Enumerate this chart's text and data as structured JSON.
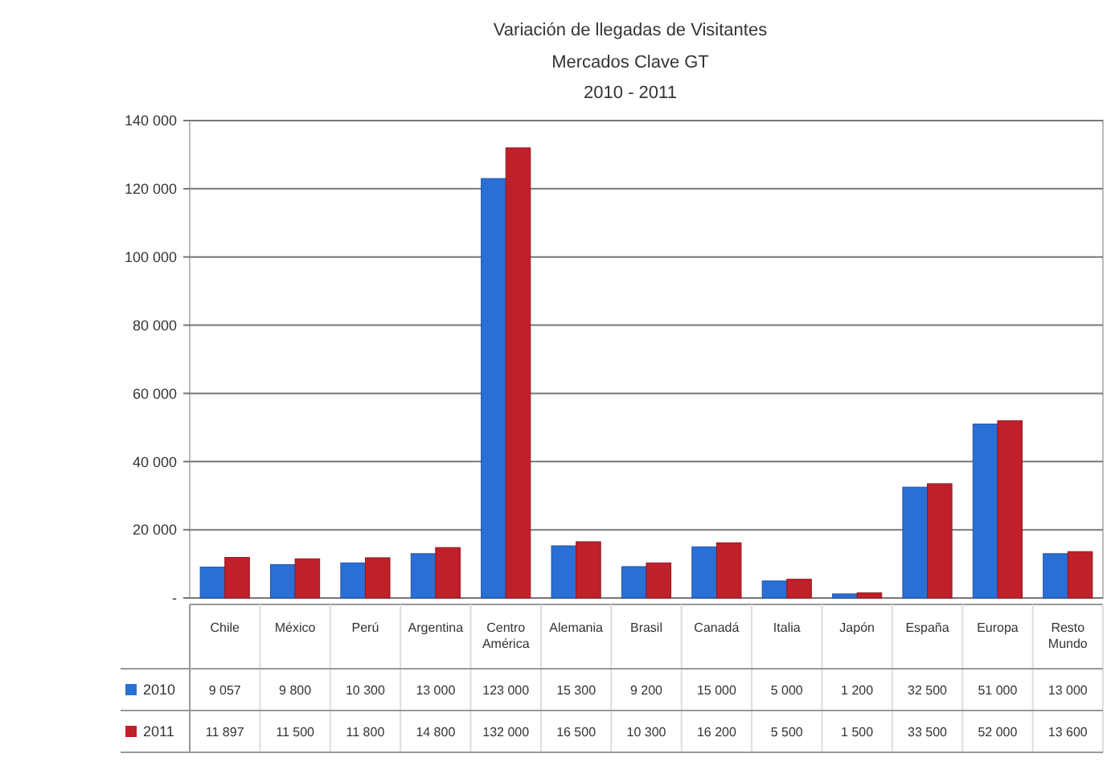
{
  "chart_data": {
    "type": "bar",
    "title": "Variación de llegadas de Visitantes",
    "subtitle": "Mercados Clave GT\n2010 - 2011",
    "categories": [
      "Chile",
      "México",
      "Perú",
      "Argentina",
      "Centro América",
      "Alemania",
      "Brasil",
      "Canadá",
      "Italia",
      "Japón",
      "España",
      "Europa",
      "Resto Mundo"
    ],
    "series": [
      {
        "name": "2010",
        "color": "#2a6fd6",
        "values": [
          9057,
          9800,
          10300,
          13000,
          123000,
          15300,
          9200,
          15000,
          5000,
          1200,
          32500,
          51000,
          13000
        ]
      },
      {
        "name": "2011",
        "color": "#c0202a",
        "values": [
          11897,
          11500,
          11800,
          14800,
          132000,
          16500,
          10300,
          16200,
          5500,
          1500,
          33500,
          52000,
          13600
        ]
      }
    ],
    "ylim": [
      0,
      140000
    ],
    "yticks": [
      {
        "value": 0,
        "label": "-"
      },
      {
        "value": 20000,
        "label": "20 000"
      },
      {
        "value": 40000,
        "label": "40 000"
      },
      {
        "value": 60000,
        "label": "60 000"
      },
      {
        "value": 80000,
        "label": "80 000"
      },
      {
        "value": 100000,
        "label": "100 000"
      },
      {
        "value": 120000,
        "label": "120 000"
      },
      {
        "value": 140000,
        "label": "140 000"
      }
    ],
    "grid": "y",
    "data_labels": true,
    "legend": "bottom left"
  }
}
